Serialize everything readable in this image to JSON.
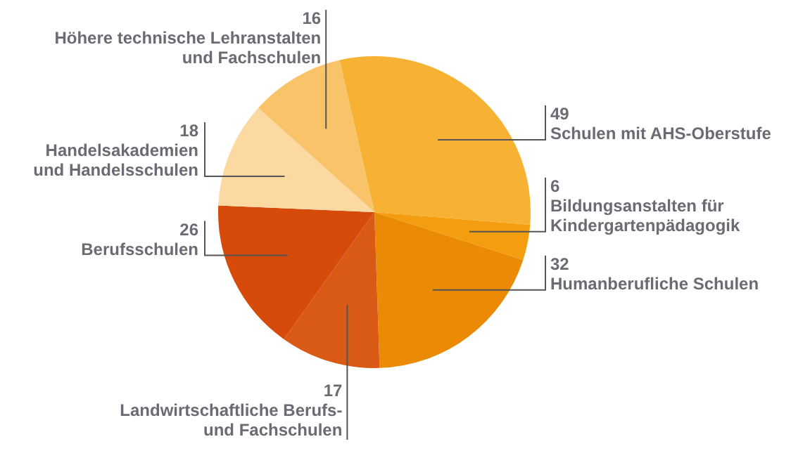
{
  "chart_data": {
    "type": "pie",
    "categories": [
      "Schulen mit AHS-Oberstufe",
      "Bildungsanstalten für\nKindergartenpädagogik",
      "Humanberufliche Schulen",
      "Landwirtschaftliche Berufs-\nund Fachschulen",
      "Berufsschulen",
      "Handelsakademien\nund Handelsschulen",
      "Höhere technische Lehranstalten\nund Fachschulen"
    ],
    "values": [
      49,
      6,
      32,
      17,
      26,
      18,
      16
    ],
    "colors": [
      "#f7b233",
      "#f49d0f",
      "#ea8a05",
      "#d85a14",
      "#d64a0a",
      "#fbd9a0",
      "#f9c469"
    ],
    "data_labels": true,
    "legend": false
  }
}
